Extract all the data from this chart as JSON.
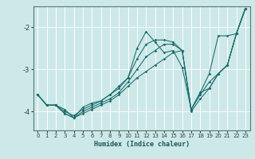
{
  "xlabel": "Humidex (Indice chaleur)",
  "xlim": [
    -0.5,
    23.5
  ],
  "ylim": [
    -4.45,
    -1.5
  ],
  "yticks": [
    -4,
    -3,
    -2
  ],
  "xticks": [
    0,
    1,
    2,
    3,
    4,
    5,
    6,
    7,
    8,
    9,
    10,
    11,
    12,
    13,
    14,
    15,
    16,
    17,
    18,
    19,
    20,
    21,
    22,
    23
  ],
  "bg_color": "#cde8e8",
  "grid_color": "#ffffff",
  "line_color": "#1a6b6b",
  "lines": [
    {
      "x": [
        0,
        1,
        2,
        3,
        4,
        5,
        6,
        7,
        8,
        9,
        10,
        11,
        12,
        13,
        14,
        15,
        16,
        17,
        18,
        19,
        20,
        21,
        22,
        23
      ],
      "y": [
        -3.6,
        -3.85,
        -3.85,
        -3.95,
        -4.15,
        -3.9,
        -3.8,
        -3.75,
        -3.6,
        -3.4,
        -3.2,
        -2.5,
        -2.1,
        -2.35,
        -2.6,
        -2.55,
        -2.95,
        -3.95,
        -3.55,
        -3.1,
        -2.2,
        -2.2,
        -2.15,
        -1.55
      ]
    },
    {
      "x": [
        0,
        1,
        2,
        3,
        4,
        5,
        6,
        7,
        8,
        9,
        10,
        11,
        12,
        13,
        14,
        15,
        16,
        17,
        18,
        19,
        20,
        21,
        22,
        23
      ],
      "y": [
        -3.6,
        -3.85,
        -3.85,
        -4.05,
        -4.15,
        -4.05,
        -3.95,
        -3.85,
        -3.75,
        -3.6,
        -3.4,
        -3.2,
        -3.05,
        -2.9,
        -2.75,
        -2.6,
        -2.55,
        -3.95,
        -3.55,
        -3.45,
        -3.1,
        -2.9,
        -2.15,
        -1.55
      ]
    },
    {
      "x": [
        0,
        1,
        2,
        3,
        4,
        5,
        6,
        7,
        8,
        9,
        10,
        11,
        12,
        13,
        14,
        15,
        16,
        17,
        18,
        19,
        20,
        21,
        22,
        23
      ],
      "y": [
        -3.6,
        -3.85,
        -3.85,
        -4.05,
        -4.15,
        -4.0,
        -3.9,
        -3.8,
        -3.7,
        -3.55,
        -3.3,
        -3.0,
        -2.7,
        -2.55,
        -2.4,
        -2.4,
        -2.55,
        -4.0,
        -3.7,
        -3.45,
        -3.1,
        -2.9,
        -2.15,
        -1.55
      ]
    },
    {
      "x": [
        0,
        1,
        2,
        3,
        4,
        5,
        6,
        7,
        8,
        9,
        10,
        11,
        12,
        13,
        14,
        15,
        16,
        17,
        18,
        19,
        20,
        21,
        22,
        23
      ],
      "y": [
        -3.6,
        -3.85,
        -3.85,
        -4.0,
        -4.1,
        -3.95,
        -3.85,
        -3.75,
        -3.6,
        -3.45,
        -3.2,
        -2.75,
        -2.4,
        -2.3,
        -2.3,
        -2.35,
        -2.55,
        -3.95,
        -3.6,
        -3.3,
        -3.1,
        -2.9,
        -2.15,
        -1.55
      ]
    }
  ]
}
